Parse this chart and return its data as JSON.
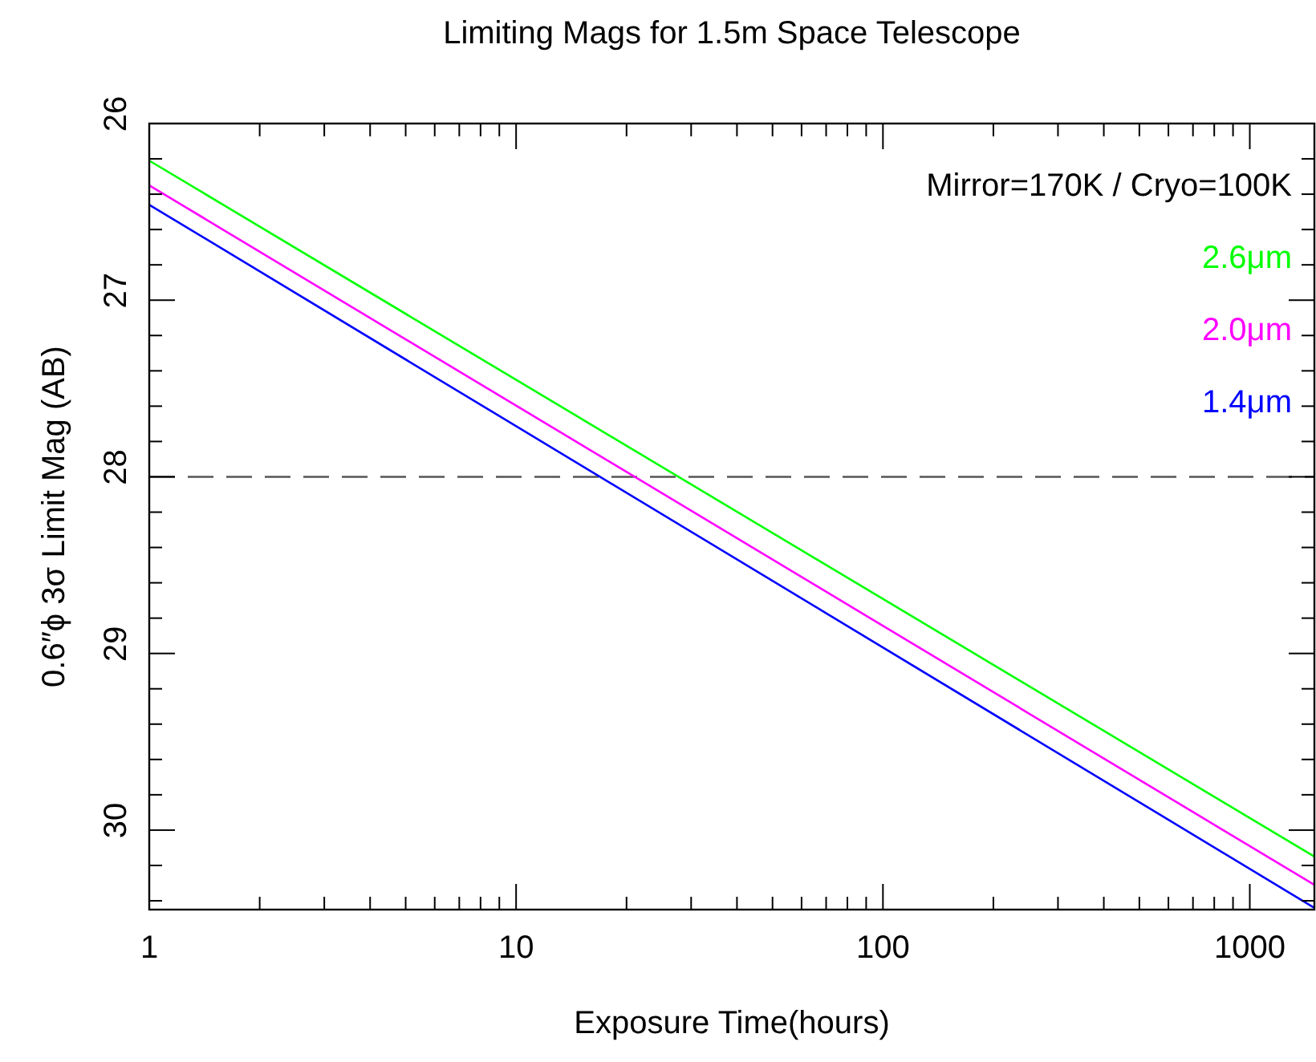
{
  "chart_data": {
    "type": "line",
    "title": "Limiting Mags for 1.5m Space Telescope",
    "xlabel": "Exposure Time(hours)",
    "ylabel": "0.6″ϕ 3σ Limit Mag (AB)",
    "log": "x",
    "legend": "top right",
    "legend_title": "Mirror=170K / Cryo=100K",
    "line_style": "solid",
    "marker": "none",
    "grid": false,
    "x": [
      1,
      1500
    ],
    "xlim": [
      1,
      1500
    ],
    "xticks": [
      1,
      {
        "value": 2,
        "label": null
      },
      {
        "value": 3,
        "label": null
      },
      {
        "value": 4,
        "label": null
      },
      {
        "value": 5,
        "label": null
      },
      {
        "value": 6,
        "label": null
      },
      {
        "value": 7,
        "label": null
      },
      {
        "value": 8,
        "label": null
      },
      {
        "value": 9,
        "label": null
      },
      10,
      {
        "value": 20,
        "label": null
      },
      {
        "value": 30,
        "label": null
      },
      {
        "value": 40,
        "label": null
      },
      {
        "value": 50,
        "label": null
      },
      {
        "value": 60,
        "label": null
      },
      {
        "value": 70,
        "label": null
      },
      {
        "value": 80,
        "label": null
      },
      {
        "value": 90,
        "label": null
      },
      100,
      {
        "value": 200,
        "label": null
      },
      {
        "value": 300,
        "label": null
      },
      {
        "value": 400,
        "label": null
      },
      {
        "value": 500,
        "label": null
      },
      {
        "value": 600,
        "label": null
      },
      {
        "value": 700,
        "label": null
      },
      {
        "value": 800,
        "label": null
      },
      {
        "value": 900,
        "label": null
      },
      1000
    ],
    "ylim": [
      30.45,
      26
    ],
    "yticks": [
      26,
      {
        "value": 26.2,
        "label": null
      },
      {
        "value": 26.4,
        "label": null
      },
      {
        "value": 26.6,
        "label": null
      },
      {
        "value": 26.8,
        "label": null
      },
      27,
      {
        "value": 27.2,
        "label": null
      },
      {
        "value": 27.4,
        "label": null
      },
      {
        "value": 27.6,
        "label": null
      },
      {
        "value": 27.8,
        "label": null
      },
      28,
      {
        "value": 28.2,
        "label": null
      },
      {
        "value": 28.4,
        "label": null
      },
      {
        "value": 28.6,
        "label": null
      },
      {
        "value": 28.8,
        "label": null
      },
      29,
      {
        "value": 29.2,
        "label": null
      },
      {
        "value": 29.4,
        "label": null
      },
      {
        "value": 29.6,
        "label": null
      },
      {
        "value": 29.8,
        "label": null
      },
      30,
      {
        "value": 30.2,
        "label": null
      },
      {
        "value": 30.4,
        "label": null
      }
    ],
    "series": [
      {
        "name": "2.6μm",
        "color": "#00ff00",
        "values": [
          26.21,
          30.15
        ]
      },
      {
        "name": "2.0μm",
        "color": "#ff00ff",
        "values": [
          26.35,
          30.31
        ]
      },
      {
        "name": "1.4μm",
        "color": "#0000ff",
        "values": [
          26.46,
          30.44
        ]
      }
    ],
    "ref_lines": [
      {
        "axis": "y",
        "value": 28,
        "color": "#555555",
        "line_style": "dashed"
      }
    ]
  }
}
